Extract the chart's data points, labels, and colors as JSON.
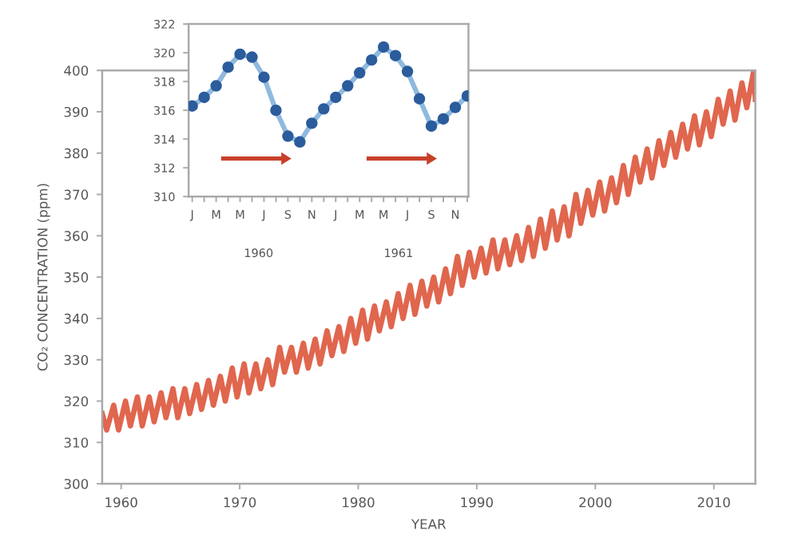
{
  "chart_data": [
    {
      "type": "line",
      "xlabel": "YEAR",
      "ylabel": "CO₂ CONCENTRATION (ppm)",
      "xlim": [
        1958.4,
        2013.5
      ],
      "ylim": [
        300,
        400
      ],
      "xticks": [
        1960,
        1970,
        1980,
        1990,
        2000,
        2010
      ],
      "yticks": [
        300,
        310,
        320,
        330,
        340,
        350,
        360,
        370,
        380,
        390,
        400
      ],
      "grid": false,
      "legend": false,
      "marker": "none",
      "line_style": "solid",
      "series": [
        {
          "color": "#e0664e",
          "x": [
            1958.4,
            1958.78,
            1959.37,
            1959.78,
            1960.37,
            1960.78,
            1961.37,
            1961.78,
            1962.37,
            1962.78,
            1963.37,
            1963.78,
            1964.37,
            1964.78,
            1965.37,
            1965.78,
            1966.37,
            1966.78,
            1967.37,
            1967.78,
            1968.37,
            1968.78,
            1969.37,
            1969.78,
            1970.37,
            1970.78,
            1971.37,
            1971.78,
            1972.37,
            1972.78,
            1973.37,
            1973.78,
            1974.37,
            1974.78,
            1975.37,
            1975.78,
            1976.37,
            1976.78,
            1977.37,
            1977.78,
            1978.37,
            1978.78,
            1979.37,
            1979.78,
            1980.37,
            1980.78,
            1981.37,
            1981.78,
            1982.37,
            1982.78,
            1983.37,
            1983.78,
            1984.37,
            1984.78,
            1985.37,
            1985.78,
            1986.37,
            1986.78,
            1987.37,
            1987.78,
            1988.37,
            1988.78,
            1989.37,
            1989.78,
            1990.37,
            1990.78,
            1991.37,
            1991.78,
            1992.37,
            1992.78,
            1993.37,
            1993.78,
            1994.37,
            1994.78,
            1995.37,
            1995.78,
            1996.37,
            1996.78,
            1997.37,
            1997.78,
            1998.37,
            1998.78,
            1999.37,
            1999.78,
            2000.37,
            2000.78,
            2001.37,
            2001.78,
            2002.37,
            2002.78,
            2003.37,
            2003.78,
            2004.37,
            2004.78,
            2005.37,
            2005.78,
            2006.37,
            2006.78,
            2007.37,
            2007.78,
            2008.37,
            2008.78,
            2009.37,
            2009.78,
            2010.37,
            2010.78,
            2011.37,
            2011.78,
            2012.37,
            2012.78,
            2013.37,
            2013.5
          ],
          "values": [
            317,
            313,
            319,
            313,
            320,
            314,
            321,
            314,
            321,
            315,
            322,
            316,
            323,
            316,
            323,
            317,
            324,
            318,
            325,
            319,
            326,
            320,
            328,
            321,
            329,
            322,
            329,
            323,
            330,
            324,
            333,
            327,
            333,
            327,
            334,
            328,
            335,
            329,
            337,
            331,
            338,
            332,
            340,
            334,
            342,
            335,
            343,
            337,
            344,
            338,
            346,
            340,
            348,
            341,
            349,
            343,
            350,
            344,
            352,
            346,
            355,
            348,
            356,
            350,
            357,
            351,
            359,
            352,
            359,
            353,
            360,
            354,
            362,
            355,
            364,
            357,
            366,
            359,
            367,
            360,
            370,
            363,
            371,
            365,
            373,
            366,
            374,
            368,
            377,
            370,
            379,
            373,
            381,
            374,
            383,
            377,
            385,
            379,
            387,
            381,
            389,
            382,
            390,
            384,
            393,
            387,
            395,
            388,
            397,
            391,
            400,
            393
          ]
        }
      ]
    },
    {
      "type": "line",
      "categories": [
        "J",
        null,
        "M",
        null,
        "M",
        null,
        "J",
        null,
        "S",
        null,
        "N",
        null,
        "J",
        null,
        "M",
        null,
        "M",
        null,
        "J",
        null,
        "S",
        null,
        "N",
        null
      ],
      "ylim": [
        310,
        322
      ],
      "yticks": [
        310,
        312,
        314,
        316,
        318,
        320,
        322
      ],
      "grid": false,
      "legend": false,
      "marker": "circle",
      "line_style": "solid",
      "annotations": [
        "1960",
        "1961"
      ],
      "series": [
        {
          "color": "#2b5c9c",
          "values": [
            316.3,
            316.9,
            317.7,
            319.0,
            319.9,
            319.7,
            318.3,
            316.0,
            314.2,
            313.8,
            315.1,
            316.1,
            316.9,
            317.7,
            318.6,
            319.5,
            320.4,
            319.8,
            318.7,
            316.8,
            314.9,
            315.4,
            316.2,
            317.0
          ]
        }
      ]
    }
  ]
}
